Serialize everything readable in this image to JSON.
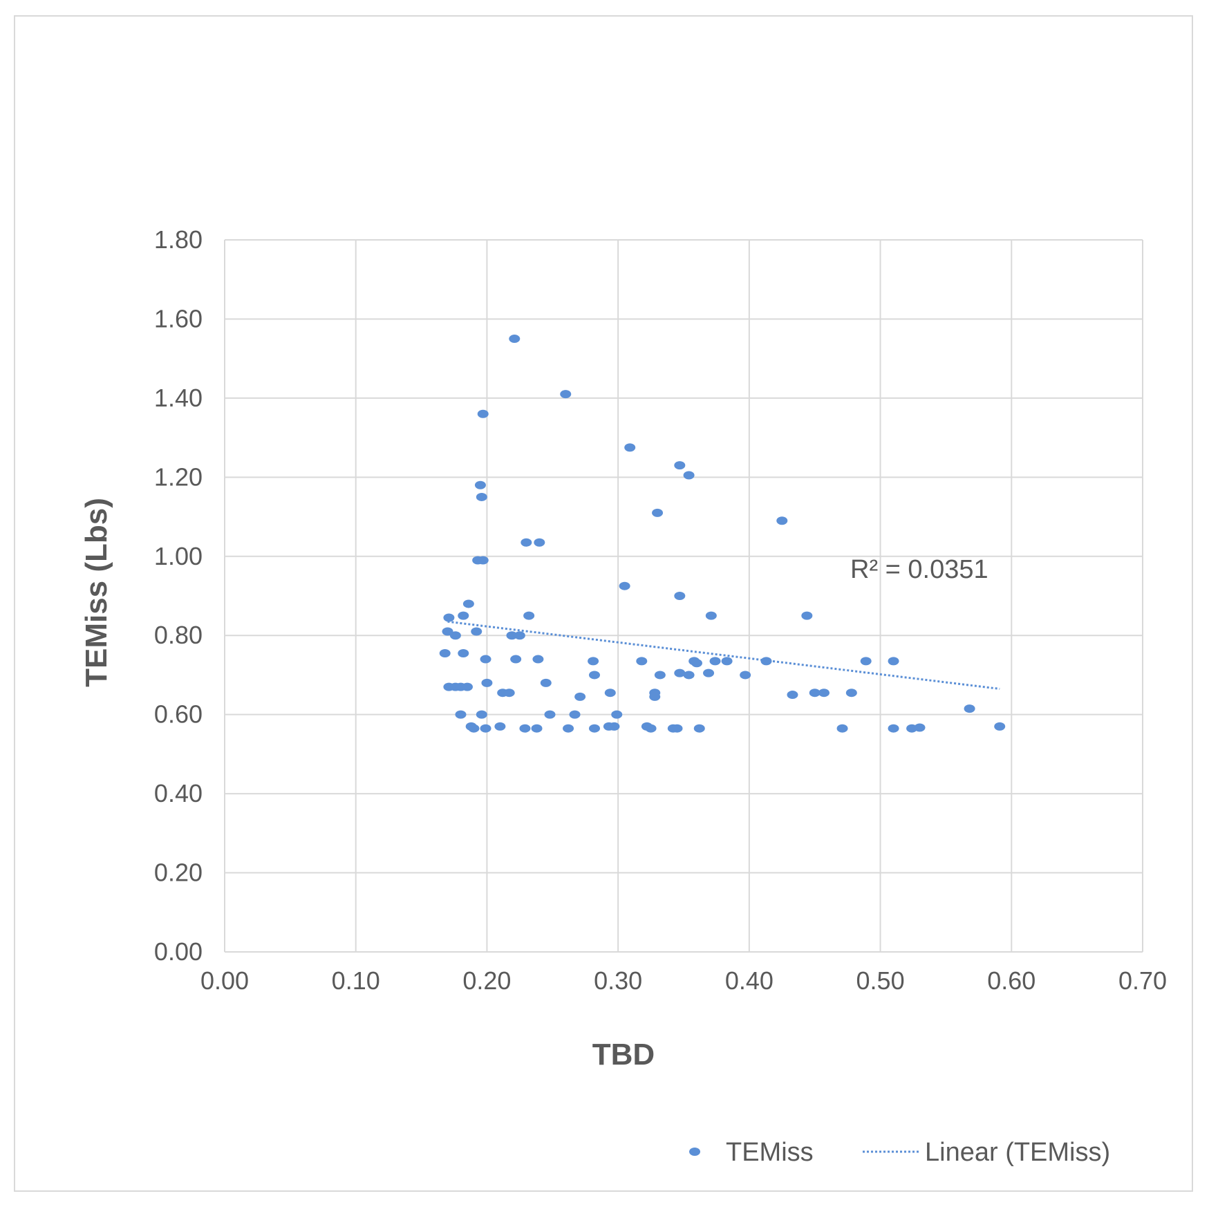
{
  "chart_data": {
    "type": "scatter",
    "title": "",
    "xlabel": "TBD",
    "ylabel": "TEMiss (Lbs)",
    "xlim": [
      0,
      0.7
    ],
    "ylim": [
      0,
      1.8
    ],
    "x_ticks": [
      "0.00",
      "0.10",
      "0.20",
      "0.30",
      "0.40",
      "0.50",
      "0.60",
      "0.70"
    ],
    "y_ticks": [
      "0.00",
      "0.20",
      "0.40",
      "0.60",
      "0.80",
      "1.00",
      "1.20",
      "1.40",
      "1.60",
      "1.80"
    ],
    "grid": true,
    "legend_position": "bottom-right",
    "colors": {
      "points": "#5b8fd6",
      "trendline": "#5b8fd6",
      "grid": "#d9d9d9",
      "text": "#595959"
    },
    "series": [
      {
        "name": "TEMiss",
        "points": [
          [
            0.221,
            1.55
          ],
          [
            0.26,
            1.41
          ],
          [
            0.197,
            1.36
          ],
          [
            0.309,
            1.275
          ],
          [
            0.347,
            1.23
          ],
          [
            0.354,
            1.205
          ],
          [
            0.195,
            1.18
          ],
          [
            0.196,
            1.15
          ],
          [
            0.33,
            1.11
          ],
          [
            0.425,
            1.09
          ],
          [
            0.23,
            1.035
          ],
          [
            0.24,
            1.035
          ],
          [
            0.193,
            0.99
          ],
          [
            0.197,
            0.99
          ],
          [
            0.305,
            0.925
          ],
          [
            0.347,
            0.9
          ],
          [
            0.186,
            0.88
          ],
          [
            0.171,
            0.845
          ],
          [
            0.182,
            0.85
          ],
          [
            0.232,
            0.85
          ],
          [
            0.371,
            0.85
          ],
          [
            0.444,
            0.85
          ],
          [
            0.17,
            0.81
          ],
          [
            0.192,
            0.81
          ],
          [
            0.176,
            0.8
          ],
          [
            0.219,
            0.8
          ],
          [
            0.225,
            0.8
          ],
          [
            0.168,
            0.755
          ],
          [
            0.182,
            0.755
          ],
          [
            0.199,
            0.74
          ],
          [
            0.222,
            0.74
          ],
          [
            0.239,
            0.74
          ],
          [
            0.281,
            0.735
          ],
          [
            0.318,
            0.735
          ],
          [
            0.358,
            0.735
          ],
          [
            0.374,
            0.735
          ],
          [
            0.383,
            0.735
          ],
          [
            0.413,
            0.735
          ],
          [
            0.489,
            0.735
          ],
          [
            0.51,
            0.735
          ],
          [
            0.36,
            0.73
          ],
          [
            0.282,
            0.7
          ],
          [
            0.332,
            0.7
          ],
          [
            0.347,
            0.705
          ],
          [
            0.354,
            0.7
          ],
          [
            0.369,
            0.705
          ],
          [
            0.397,
            0.7
          ],
          [
            0.2,
            0.68
          ],
          [
            0.245,
            0.68
          ],
          [
            0.171,
            0.67
          ],
          [
            0.176,
            0.67
          ],
          [
            0.18,
            0.67
          ],
          [
            0.185,
            0.67
          ],
          [
            0.212,
            0.655
          ],
          [
            0.217,
            0.655
          ],
          [
            0.294,
            0.655
          ],
          [
            0.328,
            0.655
          ],
          [
            0.45,
            0.655
          ],
          [
            0.457,
            0.655
          ],
          [
            0.478,
            0.655
          ],
          [
            0.271,
            0.645
          ],
          [
            0.328,
            0.645
          ],
          [
            0.433,
            0.65
          ],
          [
            0.568,
            0.615
          ],
          [
            0.18,
            0.6
          ],
          [
            0.196,
            0.6
          ],
          [
            0.248,
            0.6
          ],
          [
            0.267,
            0.6
          ],
          [
            0.299,
            0.6
          ],
          [
            0.188,
            0.57
          ],
          [
            0.21,
            0.57
          ],
          [
            0.293,
            0.57
          ],
          [
            0.297,
            0.57
          ],
          [
            0.322,
            0.57
          ],
          [
            0.591,
            0.57
          ],
          [
            0.53,
            0.567
          ],
          [
            0.19,
            0.565
          ],
          [
            0.199,
            0.565
          ],
          [
            0.229,
            0.565
          ],
          [
            0.238,
            0.565
          ],
          [
            0.262,
            0.565
          ],
          [
            0.282,
            0.565
          ],
          [
            0.325,
            0.565
          ],
          [
            0.342,
            0.565
          ],
          [
            0.345,
            0.565
          ],
          [
            0.362,
            0.565
          ],
          [
            0.471,
            0.565
          ],
          [
            0.51,
            0.565
          ],
          [
            0.524,
            0.565
          ]
        ]
      }
    ],
    "trendline": {
      "name": "Linear (TEMiss)",
      "type": "linear",
      "x_range": [
        0.17,
        0.591
      ],
      "y_at_start": 0.835,
      "y_at_end": 0.665,
      "r_squared_label": "R² = 0.0351"
    }
  },
  "legend": {
    "series_label": "TEMiss",
    "trend_label": "Linear (TEMiss)"
  }
}
